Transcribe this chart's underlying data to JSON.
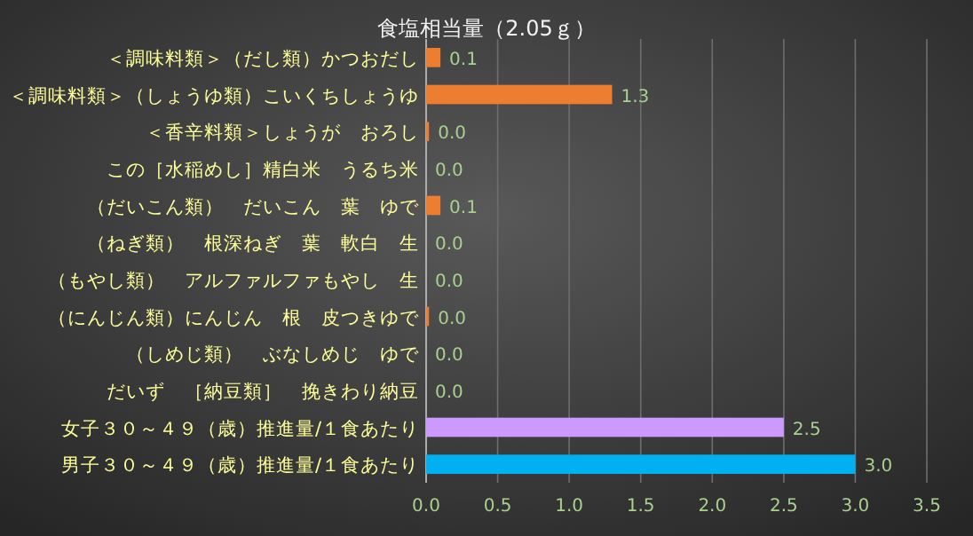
{
  "chart_data": {
    "type": "bar",
    "orientation": "horizontal",
    "title": "食塩相当量（2.05ｇ）",
    "categories": [
      "＜調味料類＞（だし類）かつおだし",
      "＜調味料類＞（しょうゆ類）こいくちしょうゆ",
      "＜香辛料類＞しょうが　おろし",
      "この［水稲めし］精白米　うるち米",
      "（だいこん類）　だいこん　葉　ゆで",
      "（ねぎ類）　根深ねぎ　葉　軟白　生",
      "（もやし類）　アルファルファもやし　生",
      "（にんじん類）にんじん　根　皮つきゆで",
      "（しめじ類）　ぶなしめじ　ゆで",
      "だいず　［納豆類］　挽きわり納豆",
      "女子３０～４９（歳）推進量/１食あたり",
      "男子３０～４９（歳）推進量/１食あたり"
    ],
    "values": [
      0.1,
      1.3,
      0.02,
      0,
      0.1,
      0,
      0,
      0.02,
      0,
      0,
      2.5,
      3.0
    ],
    "value_labels": [
      "0.1",
      "1.3",
      "0.0",
      "0.0",
      "0.1",
      "0.0",
      "0.0",
      "0.0",
      "0.0",
      "0.0",
      "2.5",
      "3.0"
    ],
    "colors": [
      "#ed7d31",
      "#ed7d31",
      "#ed7d31",
      "#ed7d31",
      "#ed7d31",
      "#ed7d31",
      "#ed7d31",
      "#ed7d31",
      "#ed7d31",
      "#ed7d31",
      "#cc99ff",
      "#00b0f0"
    ],
    "xlim": [
      0,
      3.5
    ],
    "xticks": [
      {
        "value": 0,
        "label": "0.0"
      },
      {
        "value": 0.5,
        "label": "0.5"
      },
      {
        "value": 1,
        "label": "1.0"
      },
      {
        "value": 1.5,
        "label": "1.5"
      },
      {
        "value": 2,
        "label": "2.0"
      },
      {
        "value": 2.5,
        "label": "2.5"
      },
      {
        "value": 3,
        "label": "3.0"
      },
      {
        "value": 3.5,
        "label": "3.5"
      }
    ],
    "grid": "x"
  }
}
